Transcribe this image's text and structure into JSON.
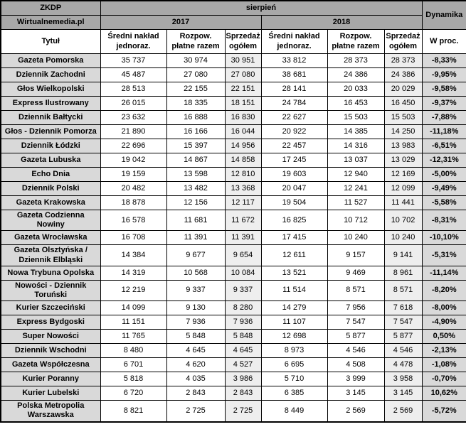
{
  "colors": {
    "header_gray": "#a8a8a8",
    "label_column_gray": "#d9d9d9",
    "sales_column_gray": "#eeeeee",
    "dynamics_column_gray": "#d9d9d9",
    "border_black": "#000000",
    "text_black": "#000000"
  },
  "chart_data": {
    "type": "table",
    "title": "ZKDP",
    "source": "Wirtualnemedia.pl",
    "month": "sierpień",
    "dynamics_label": "Dynamika",
    "percent_label": "W proc.",
    "title_column_label": "Tytuł",
    "year_groups": [
      "2017",
      "2018"
    ],
    "metric_columns": [
      "Średni nakład jednoraz.",
      "Rozpow. płatne razem",
      "Sprzedaż ogółem"
    ],
    "rows": [
      {
        "title": "Gazeta Pomorska",
        "y2017": [
          "35 737",
          "30 974",
          "30 951"
        ],
        "y2018": [
          "33 812",
          "28 373",
          "28 373"
        ],
        "dynamics": "-8,33%"
      },
      {
        "title": "Dziennik Zachodni",
        "y2017": [
          "45 487",
          "27 080",
          "27 080"
        ],
        "y2018": [
          "38 681",
          "24 386",
          "24 386"
        ],
        "dynamics": "-9,95%"
      },
      {
        "title": "Głos Wielkopolski",
        "y2017": [
          "28 513",
          "22 155",
          "22 151"
        ],
        "y2018": [
          "28 141",
          "20 033",
          "20 029"
        ],
        "dynamics": "-9,58%"
      },
      {
        "title": "Express Ilustrowany",
        "y2017": [
          "26 015",
          "18 335",
          "18 151"
        ],
        "y2018": [
          "24 784",
          "16 453",
          "16 450"
        ],
        "dynamics": "-9,37%"
      },
      {
        "title": "Dziennik Bałtycki",
        "y2017": [
          "23 632",
          "16 888",
          "16 830"
        ],
        "y2018": [
          "22 627",
          "15 503",
          "15 503"
        ],
        "dynamics": "-7,88%"
      },
      {
        "title": "Głos - Dziennik Pomorza",
        "y2017": [
          "21 890",
          "16 166",
          "16 044"
        ],
        "y2018": [
          "20 922",
          "14 385",
          "14 250"
        ],
        "dynamics": "-11,18%"
      },
      {
        "title": "Dziennik Łódzki",
        "y2017": [
          "22 696",
          "15 397",
          "14 956"
        ],
        "y2018": [
          "22 457",
          "14 316",
          "13 983"
        ],
        "dynamics": "-6,51%"
      },
      {
        "title": "Gazeta Lubuska",
        "y2017": [
          "19 042",
          "14 867",
          "14 858"
        ],
        "y2018": [
          "17 245",
          "13 037",
          "13 029"
        ],
        "dynamics": "-12,31%"
      },
      {
        "title": "Echo Dnia",
        "y2017": [
          "19 159",
          "13 598",
          "12 810"
        ],
        "y2018": [
          "19 603",
          "12 940",
          "12 169"
        ],
        "dynamics": "-5,00%"
      },
      {
        "title": "Dziennik Polski",
        "y2017": [
          "20 482",
          "13 482",
          "13 368"
        ],
        "y2018": [
          "20 047",
          "12 241",
          "12 099"
        ],
        "dynamics": "-9,49%"
      },
      {
        "title": "Gazeta Krakowska",
        "y2017": [
          "18 878",
          "12 156",
          "12 117"
        ],
        "y2018": [
          "19 504",
          "11 527",
          "11 441"
        ],
        "dynamics": "-5,58%"
      },
      {
        "title": "Gazeta Codzienna Nowiny",
        "y2017": [
          "16 578",
          "11 681",
          "11 672"
        ],
        "y2018": [
          "16 825",
          "10 712",
          "10 702"
        ],
        "dynamics": "-8,31%"
      },
      {
        "title": "Gazeta Wrocławska",
        "y2017": [
          "16 708",
          "11 391",
          "11 391"
        ],
        "y2018": [
          "17 415",
          "10 240",
          "10 240"
        ],
        "dynamics": "-10,10%"
      },
      {
        "title": "Gazeta Olsztyńska / Dziennik Elbląski",
        "y2017": [
          "14 384",
          "9 677",
          "9 654"
        ],
        "y2018": [
          "12 611",
          "9 157",
          "9 141"
        ],
        "dynamics": "-5,31%"
      },
      {
        "title": "Nowa Trybuna Opolska",
        "y2017": [
          "14 319",
          "10 568",
          "10 084"
        ],
        "y2018": [
          "13 521",
          "9 469",
          "8 961"
        ],
        "dynamics": "-11,14%"
      },
      {
        "title": "Nowości - Dziennik Toruński",
        "y2017": [
          "12 219",
          "9 337",
          "9 337"
        ],
        "y2018": [
          "11 514",
          "8 571",
          "8 571"
        ],
        "dynamics": "-8,20%"
      },
      {
        "title": "Kurier Szczeciński",
        "y2017": [
          "14 099",
          "9 130",
          "8 280"
        ],
        "y2018": [
          "14 279",
          "7 956",
          "7 618"
        ],
        "dynamics": "-8,00%"
      },
      {
        "title": "Express Bydgoski",
        "y2017": [
          "11 151",
          "7 936",
          "7 936"
        ],
        "y2018": [
          "11 107",
          "7 547",
          "7 547"
        ],
        "dynamics": "-4,90%"
      },
      {
        "title": "Super Nowości",
        "y2017": [
          "11 765",
          "5 848",
          "5 848"
        ],
        "y2018": [
          "12 698",
          "5 877",
          "5 877"
        ],
        "dynamics": "0,50%"
      },
      {
        "title": "Dziennik Wschodni",
        "y2017": [
          "8 480",
          "4 645",
          "4 645"
        ],
        "y2018": [
          "8 973",
          "4 546",
          "4 546"
        ],
        "dynamics": "-2,13%"
      },
      {
        "title": "Gazeta Współczesna",
        "y2017": [
          "6 701",
          "4 620",
          "4 527"
        ],
        "y2018": [
          "6 695",
          "4 508",
          "4 478"
        ],
        "dynamics": "-1,08%"
      },
      {
        "title": "Kurier Poranny",
        "y2017": [
          "5 818",
          "4 035",
          "3 986"
        ],
        "y2018": [
          "5 710",
          "3 999",
          "3 958"
        ],
        "dynamics": "-0,70%"
      },
      {
        "title": "Kurier Lubelski",
        "y2017": [
          "6 720",
          "2 843",
          "2 843"
        ],
        "y2018": [
          "6 385",
          "3 145",
          "3 145"
        ],
        "dynamics": "10,62%"
      },
      {
        "title": "Polska Metropolia Warszawska",
        "y2017": [
          "8 821",
          "2 725",
          "2 725"
        ],
        "y2018": [
          "8 449",
          "2 569",
          "2 569"
        ],
        "dynamics": "-5,72%"
      }
    ]
  }
}
